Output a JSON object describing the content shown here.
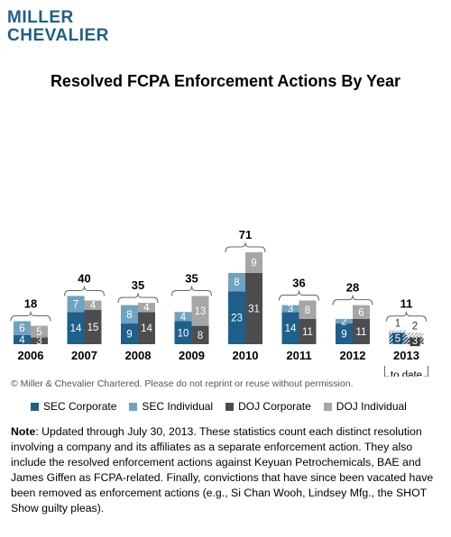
{
  "logo": {
    "line1": "MILLER",
    "line2": "CHEVALIER"
  },
  "copyright": "© Miller & Chevalier Chartered. Please do not reprint or reuse without permission.",
  "note": {
    "label": "Note",
    "text": ": Updated through July 30, 2013. These statistics count each distinct resolution involving a company and its affiliates as a separate enforcement action. They also include the resolved enforcement actions against Keyuan Petrochemicals, BAE and James Giffen as FCPA-related. Finally, convictions that have since been vacated have been removed as enforcement actions (e.g., Si Chan Wooh, Lindsey  Mfg., the SHOT Show guilty pleas)."
  },
  "colors": {
    "sec_corporate": "#1f5f8b",
    "sec_individual": "#6fa3bf",
    "doj_corporate": "#4d4d4f",
    "doj_individual": "#a6a6a6"
  },
  "chart_data": {
    "type": "bar",
    "title": "Resolved FCPA Enforcement Actions By Year",
    "stacked": true,
    "categories": [
      "2006",
      "2007",
      "2008",
      "2009",
      "2010",
      "2011",
      "2012",
      "2013"
    ],
    "category_sublabels": [
      "",
      "",
      "",
      "",
      "",
      "",
      "",
      "to date"
    ],
    "totals": [
      18,
      40,
      35,
      35,
      71,
      36,
      28,
      11
    ],
    "sec_series": [
      {
        "name": "SEC Corporate",
        "values": [
          4,
          14,
          9,
          10,
          23,
          14,
          9,
          5
        ]
      },
      {
        "name": "SEC Individual",
        "values": [
          6,
          7,
          8,
          4,
          8,
          3,
          2,
          1
        ]
      }
    ],
    "doj_series": [
      {
        "name": "DOJ Corporate",
        "values": [
          3,
          15,
          14,
          8,
          31,
          11,
          11,
          3
        ]
      },
      {
        "name": "DOJ Individual",
        "values": [
          5,
          4,
          4,
          13,
          9,
          8,
          6,
          2
        ]
      }
    ],
    "legend": [
      "SEC Corporate",
      "SEC Individual",
      "DOJ Corporate",
      "DOJ Individual"
    ],
    "legend_position": "bottom",
    "grid": false,
    "patterned_category": "2013"
  }
}
